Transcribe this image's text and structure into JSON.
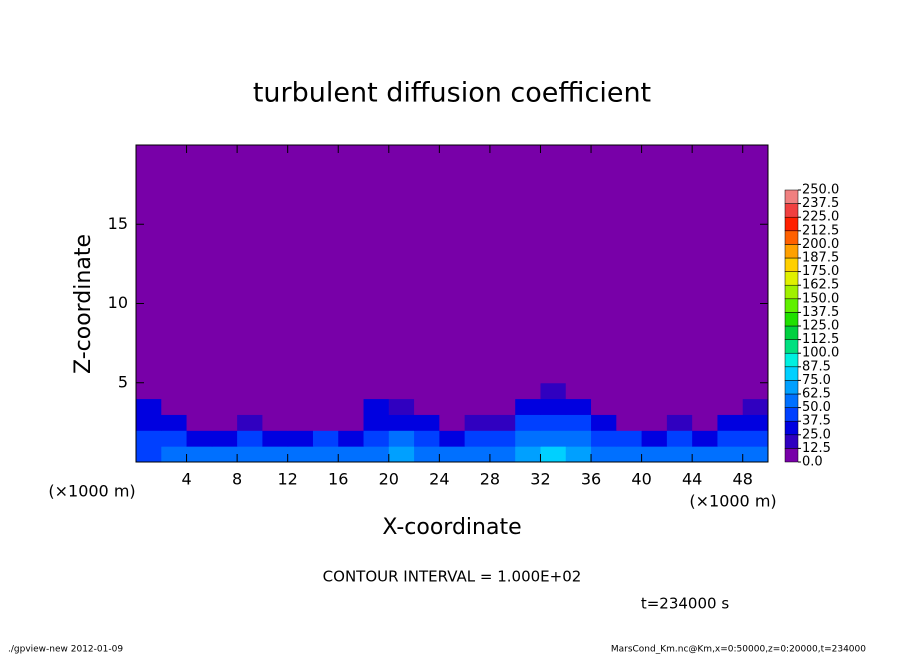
{
  "chart_data": {
    "type": "contour",
    "title": "turbulent diffusion coefficient",
    "x_label": "X-coordinate",
    "y_label": "Z-coordinate",
    "x_unit": "(×1000 m)",
    "y_unit": "(×1000 m)",
    "contour_interval": "CONTOUR INTERVAL = 1.000E+02",
    "time_label": "t=234000 s",
    "footer_left": "./gpview-new  2012-01-09",
    "footer_right": "MarsCond_Km.nc@Km,x=0:50000,z=0:20000,t=234000",
    "xlim": [
      0,
      50
    ],
    "ylim": [
      0,
      20
    ],
    "xticks": [
      4,
      8,
      12,
      16,
      20,
      24,
      28,
      32,
      36,
      40,
      44,
      48
    ],
    "yticks": [
      5,
      10,
      15
    ],
    "x_edges": [
      0,
      2,
      4,
      6,
      8,
      10,
      12,
      14,
      16,
      18,
      20,
      22,
      24,
      26,
      28,
      30,
      32,
      34,
      36,
      38,
      40,
      42,
      44,
      46,
      48,
      50
    ],
    "z_edges": [
      0,
      1,
      2,
      3,
      4,
      5,
      20
    ],
    "field": [
      [
        45,
        55,
        50,
        60,
        55,
        50,
        60,
        55,
        50,
        60,
        65,
        55,
        50,
        55,
        60,
        70,
        75,
        70,
        60,
        55,
        50,
        55,
        50,
        55,
        50
      ],
      [
        40,
        45,
        35,
        30,
        45,
        35,
        30,
        40,
        35,
        40,
        50,
        45,
        30,
        40,
        45,
        55,
        60,
        55,
        45,
        40,
        35,
        40,
        35,
        45,
        40
      ],
      [
        35,
        30,
        10,
        10,
        20,
        10,
        10,
        10,
        10,
        30,
        30,
        25,
        10,
        15,
        20,
        40,
        45,
        40,
        25,
        10,
        10,
        15,
        10,
        30,
        35
      ],
      [
        30,
        10,
        0,
        0,
        5,
        0,
        0,
        0,
        0,
        25,
        20,
        10,
        0,
        5,
        10,
        25,
        30,
        25,
        10,
        0,
        0,
        0,
        0,
        10,
        20
      ],
      [
        10,
        0,
        0,
        0,
        0,
        0,
        0,
        0,
        0,
        5,
        0,
        0,
        0,
        0,
        0,
        5,
        15,
        5,
        0,
        0,
        0,
        0,
        0,
        0,
        0
      ],
      [
        0,
        0,
        0,
        0,
        0,
        0,
        0,
        0,
        0,
        0,
        0,
        0,
        0,
        0,
        0,
        0,
        0,
        0,
        0,
        0,
        0,
        0,
        0,
        0,
        0
      ]
    ],
    "levels": [
      {
        "value": 0,
        "label": "0.0"
      },
      12.5,
      {
        "value": 25,
        "label": "25.0"
      },
      37.5,
      {
        "value": 50,
        "label": "50.0"
      },
      62.5,
      {
        "value": 75,
        "label": "75.0"
      },
      87.5,
      {
        "value": 100,
        "label": "100.0"
      },
      112.5,
      {
        "value": 125,
        "label": "125.0"
      },
      137.5,
      {
        "value": 150,
        "label": "150.0"
      },
      162.5,
      {
        "value": 175,
        "label": "175.0"
      },
      187.5,
      {
        "value": 200,
        "label": "200.0"
      },
      212.5,
      {
        "value": 225,
        "label": "225.0"
      },
      237.5,
      {
        "value": 250,
        "label": "250.0"
      }
    ],
    "colors": [
      "#7800a8",
      "#3000c0",
      "#0000e0",
      "#0040ff",
      "#0070ff",
      "#00a0ff",
      "#00d0ff",
      "#00f0e0",
      "#00e080",
      "#00d040",
      "#20e000",
      "#60f000",
      "#a0f000",
      "#e0f000",
      "#ffd000",
      "#ffa000",
      "#ff6000",
      "#ff2000",
      "#f04040",
      "#f08080"
    ]
  }
}
